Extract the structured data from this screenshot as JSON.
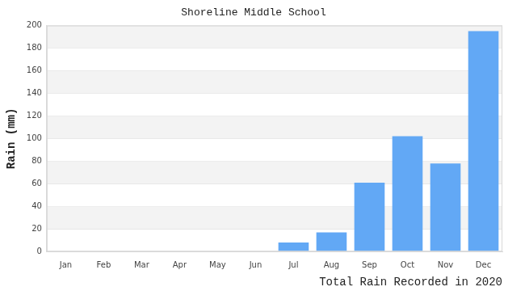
{
  "chart_data": {
    "type": "bar",
    "title": "Shoreline Middle School",
    "x_label": "Total Rain Recorded in 2020",
    "y_label": "Rain (mm)",
    "categories": [
      "Jan",
      "Feb",
      "Mar",
      "Apr",
      "May",
      "Jun",
      "Jul",
      "Aug",
      "Sep",
      "Oct",
      "Nov",
      "Dec"
    ],
    "values": [
      0,
      0,
      0,
      0,
      0,
      0,
      8,
      17,
      61,
      102,
      78,
      195
    ],
    "color": "#62a8f5",
    "ylim": [
      0,
      200
    ],
    "yticks": [
      0,
      20,
      40,
      60,
      80,
      100,
      120,
      140,
      160,
      180,
      200
    ],
    "grid": true
  }
}
